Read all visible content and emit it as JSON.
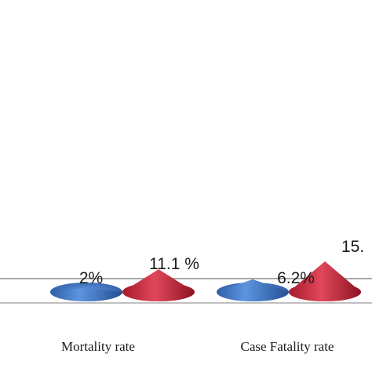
{
  "chart_data": {
    "type": "bar",
    "style": "3d-cone",
    "categories": [
      "Mortality rate",
      "Case Fatality rate"
    ],
    "series": [
      {
        "values": [
          2,
          6.2
        ],
        "color": "#3f78c8",
        "labels": [
          "2%",
          "6.2%"
        ]
      },
      {
        "values": [
          11.1,
          15.0
        ],
        "color": "#c8283c",
        "labels": [
          "11.1 %",
          "15."
        ]
      }
    ],
    "grid": false,
    "legend": "none"
  }
}
